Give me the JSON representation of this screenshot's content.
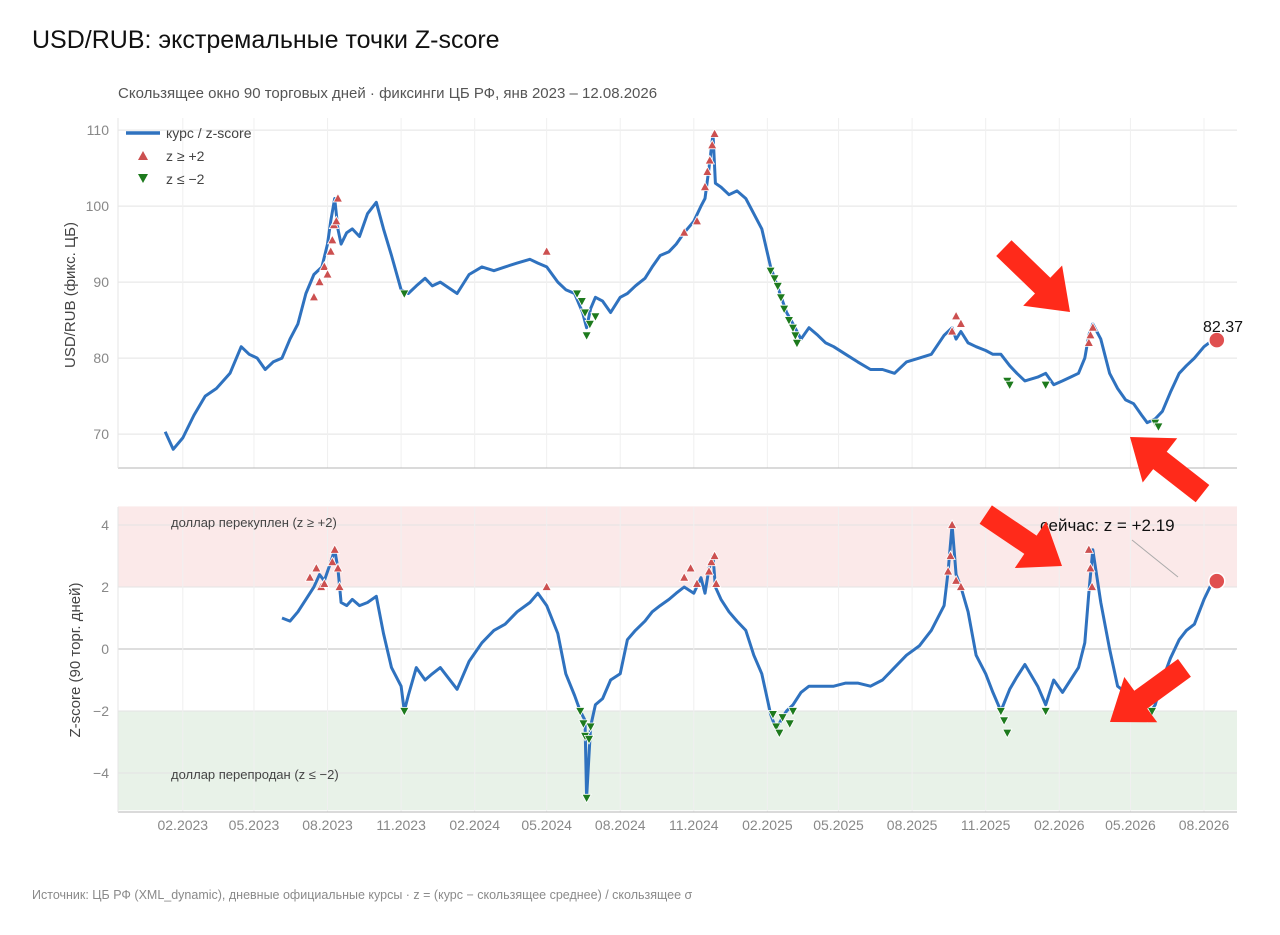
{
  "title": "USD/RUB: экстремальные точки Z-score",
  "subtitle": "Скользящее окно 90 торговых дней · фиксинги ЦБ РФ, янв 2023 – 12.08.2026",
  "source": "Источник: ЦБ РФ (XML_dynamic), дневные официальные курсы · z = (курс − скользящее среднее) / скользящее σ",
  "colors": {
    "line": "#2f72bf",
    "high": "#cc5050",
    "low": "#1d7a1d",
    "band_high": "#fbe9e9",
    "band_low": "#e8f2e8",
    "highlight": "#e05050",
    "arrow": "#ff2a1a"
  },
  "chart_data": [
    {
      "type": "line",
      "ylabel": "USD/RUB (фикс. ЦБ)",
      "ylim": [
        65.5,
        111
      ],
      "yticks": [
        70,
        80,
        90,
        100,
        110
      ],
      "grid": true,
      "legend": {
        "placement": "top-left",
        "entries": [
          "курс / z-score",
          "z ≥ +2",
          "z ≤ −2"
        ]
      },
      "x_ticks": [
        "02.2023",
        "05.2023",
        "08.2023",
        "11.2023",
        "02.2024",
        "05.2024",
        "08.2024",
        "11.2024",
        "02.2025",
        "05.2025",
        "08.2025",
        "11.2025",
        "02.2026",
        "05.2026",
        "08.2026"
      ],
      "series": [
        {
          "name": "курс / z-score",
          "x": [
            "2023-01-10",
            "2023-01-20",
            "2023-02-01",
            "2023-02-15",
            "2023-03-01",
            "2023-03-15",
            "2023-04-01",
            "2023-04-15",
            "2023-04-25",
            "2023-05-05",
            "2023-05-15",
            "2023-05-25",
            "2023-06-05",
            "2023-06-15",
            "2023-06-25",
            "2023-07-05",
            "2023-07-15",
            "2023-07-25",
            "2023-08-01",
            "2023-08-05",
            "2023-08-10",
            "2023-08-14",
            "2023-08-18",
            "2023-08-25",
            "2023-09-01",
            "2023-09-10",
            "2023-09-20",
            "2023-10-01",
            "2023-10-10",
            "2023-10-20",
            "2023-11-01",
            "2023-11-10",
            "2023-11-20",
            "2023-12-01",
            "2023-12-10",
            "2023-12-20",
            "2024-01-10",
            "2024-01-25",
            "2024-02-10",
            "2024-02-25",
            "2024-03-10",
            "2024-03-25",
            "2024-04-10",
            "2024-04-20",
            "2024-05-01",
            "2024-05-15",
            "2024-05-25",
            "2024-06-05",
            "2024-06-15",
            "2024-06-20",
            "2024-06-25",
            "2024-07-01",
            "2024-07-10",
            "2024-07-20",
            "2024-08-01",
            "2024-08-10",
            "2024-08-20",
            "2024-09-01",
            "2024-09-10",
            "2024-09-20",
            "2024-10-01",
            "2024-10-10",
            "2024-10-20",
            "2024-11-01",
            "2024-11-10",
            "2024-11-15",
            "2024-11-20",
            "2024-11-25",
            "2024-11-28",
            "2024-12-05",
            "2024-12-15",
            "2024-12-25",
            "2025-01-05",
            "2025-01-15",
            "2025-01-25",
            "2025-02-05",
            "2025-02-15",
            "2025-02-25",
            "2025-03-05",
            "2025-03-15",
            "2025-03-25",
            "2025-04-05",
            "2025-04-15",
            "2025-04-25",
            "2025-05-10",
            "2025-05-25",
            "2025-06-10",
            "2025-06-25",
            "2025-07-10",
            "2025-07-25",
            "2025-08-10",
            "2025-08-25",
            "2025-09-10",
            "2025-09-20",
            "2025-09-25",
            "2025-10-01",
            "2025-10-10",
            "2025-10-20",
            "2025-11-01",
            "2025-11-10",
            "2025-11-20",
            "2025-12-01",
            "2025-12-10",
            "2025-12-20",
            "2026-01-05",
            "2026-01-15",
            "2026-01-25",
            "2026-02-05",
            "2026-02-15",
            "2026-02-25",
            "2026-03-05",
            "2026-03-10",
            "2026-03-15",
            "2026-03-25",
            "2026-04-05",
            "2026-04-15",
            "2026-04-25",
            "2026-05-05",
            "2026-05-15",
            "2026-05-22",
            "2026-06-01",
            "2026-06-10",
            "2026-06-20",
            "2026-07-01",
            "2026-07-10",
            "2026-07-20",
            "2026-08-01",
            "2026-08-12"
          ],
          "values": [
            70.3,
            68.0,
            69.5,
            72.5,
            75.0,
            76.0,
            78.0,
            81.5,
            80.5,
            80.0,
            78.5,
            79.5,
            80.0,
            82.5,
            84.5,
            88.5,
            91.0,
            92.0,
            95.0,
            98.0,
            101.0,
            97.0,
            95.0,
            96.5,
            97.0,
            96.0,
            99.0,
            100.5,
            97.0,
            93.5,
            89.0,
            88.5,
            89.5,
            90.5,
            89.5,
            90.0,
            88.5,
            91.0,
            92.0,
            91.5,
            92.0,
            92.5,
            93.0,
            92.5,
            92.0,
            90.0,
            89.0,
            88.5,
            86.0,
            84.0,
            86.5,
            88.0,
            87.5,
            86.0,
            88.0,
            88.5,
            89.5,
            90.5,
            92.0,
            93.5,
            94.0,
            95.0,
            96.5,
            98.0,
            100.0,
            101.0,
            105.0,
            109.5,
            103.0,
            102.5,
            101.5,
            102.0,
            101.0,
            99.0,
            97.0,
            92.0,
            89.0,
            86.0,
            84.5,
            82.5,
            84.0,
            83.0,
            82.0,
            81.5,
            80.5,
            79.5,
            78.5,
            78.5,
            78.0,
            79.5,
            80.0,
            80.5,
            83.0,
            84.0,
            82.5,
            83.5,
            82.0,
            81.5,
            81.0,
            80.5,
            80.5,
            79.0,
            78.0,
            77.0,
            77.5,
            78.0,
            76.5,
            77.0,
            77.5,
            78.0,
            80.0,
            83.0,
            84.5,
            82.5,
            78.0,
            76.0,
            74.5,
            74.0,
            72.5,
            71.5,
            72.0,
            73.0,
            75.5,
            78.0,
            79.0,
            80.0,
            81.5,
            82.37
          ]
        }
      ],
      "markers_high": [
        {
          "x": "2023-07-15",
          "y": 88.0
        },
        {
          "x": "2023-07-22",
          "y": 90.0
        },
        {
          "x": "2023-07-28",
          "y": 92.0
        },
        {
          "x": "2023-08-01",
          "y": 91.0
        },
        {
          "x": "2023-08-05",
          "y": 94.0
        },
        {
          "x": "2023-08-07",
          "y": 95.5
        },
        {
          "x": "2023-08-09",
          "y": 97.5
        },
        {
          "x": "2023-08-12",
          "y": 98.0
        },
        {
          "x": "2023-08-14",
          "y": 101.0
        },
        {
          "x": "2024-05-01",
          "y": 94.0
        },
        {
          "x": "2024-10-20",
          "y": 96.5
        },
        {
          "x": "2024-11-05",
          "y": 98.0
        },
        {
          "x": "2024-11-15",
          "y": 102.5
        },
        {
          "x": "2024-11-18",
          "y": 104.5
        },
        {
          "x": "2024-11-21",
          "y": 106.0
        },
        {
          "x": "2024-11-24",
          "y": 108.0
        },
        {
          "x": "2024-11-27",
          "y": 109.5
        },
        {
          "x": "2025-09-20",
          "y": 83.5
        },
        {
          "x": "2025-09-25",
          "y": 85.5
        },
        {
          "x": "2025-10-01",
          "y": 84.5
        },
        {
          "x": "2026-03-10",
          "y": 82.0
        },
        {
          "x": "2026-03-12",
          "y": 83.0
        },
        {
          "x": "2026-03-15",
          "y": 84.0
        }
      ],
      "markers_low": [
        {
          "x": "2023-11-05",
          "y": 88.5
        },
        {
          "x": "2024-06-08",
          "y": 88.5
        },
        {
          "x": "2024-06-14",
          "y": 87.5
        },
        {
          "x": "2024-06-18",
          "y": 86.0
        },
        {
          "x": "2024-06-20",
          "y": 83.0
        },
        {
          "x": "2024-06-24",
          "y": 84.5
        },
        {
          "x": "2024-07-01",
          "y": 85.5
        },
        {
          "x": "2025-02-05",
          "y": 91.5
        },
        {
          "x": "2025-02-10",
          "y": 90.5
        },
        {
          "x": "2025-02-14",
          "y": 89.5
        },
        {
          "x": "2025-02-18",
          "y": 88.0
        },
        {
          "x": "2025-02-22",
          "y": 86.5
        },
        {
          "x": "2025-02-28",
          "y": 85.0
        },
        {
          "x": "2025-03-05",
          "y": 84.0
        },
        {
          "x": "2025-03-08",
          "y": 83.0
        },
        {
          "x": "2025-03-10",
          "y": 82.0
        },
        {
          "x": "2025-11-28",
          "y": 77.0
        },
        {
          "x": "2025-12-01",
          "y": 76.5
        },
        {
          "x": "2026-01-15",
          "y": 76.5
        },
        {
          "x": "2026-06-01",
          "y": 71.5
        },
        {
          "x": "2026-06-05",
          "y": 71.0
        }
      ],
      "last_value": {
        "x": "2026-08-12",
        "y": 82.37,
        "label": "82.37"
      }
    },
    {
      "type": "line",
      "ylabel": "Z-score (90 торг. дней)",
      "ylim": [
        -5.2,
        4.6
      ],
      "yticks": [
        4,
        2,
        0,
        -2,
        -4
      ],
      "ytick_labels": [
        "4",
        "2",
        "0",
        "−2",
        "−4"
      ],
      "grid": true,
      "bands": [
        {
          "from": 2,
          "to": 4.6,
          "label": "доллар перекуплен (z ≥ +2)"
        },
        {
          "from": -5.2,
          "to": -2,
          "label": "доллар перепродан (z ≤ −2)"
        }
      ],
      "series": [
        {
          "name": "курс / z-score",
          "x": [
            "2023-06-05",
            "2023-06-15",
            "2023-06-25",
            "2023-07-05",
            "2023-07-15",
            "2023-07-22",
            "2023-07-28",
            "2023-08-05",
            "2023-08-10",
            "2023-08-14",
            "2023-08-18",
            "2023-08-25",
            "2023-09-01",
            "2023-09-10",
            "2023-09-20",
            "2023-10-01",
            "2023-10-10",
            "2023-10-20",
            "2023-11-01",
            "2023-11-05",
            "2023-11-10",
            "2023-11-20",
            "2023-12-01",
            "2023-12-10",
            "2023-12-20",
            "2024-01-10",
            "2024-01-25",
            "2024-02-10",
            "2024-02-25",
            "2024-03-10",
            "2024-03-25",
            "2024-04-10",
            "2024-04-20",
            "2024-05-01",
            "2024-05-15",
            "2024-05-25",
            "2024-06-05",
            "2024-06-12",
            "2024-06-18",
            "2024-06-20",
            "2024-06-25",
            "2024-07-01",
            "2024-07-10",
            "2024-07-20",
            "2024-08-01",
            "2024-08-10",
            "2024-08-20",
            "2024-09-01",
            "2024-09-10",
            "2024-09-20",
            "2024-10-01",
            "2024-10-10",
            "2024-10-20",
            "2024-11-01",
            "2024-11-10",
            "2024-11-15",
            "2024-11-20",
            "2024-11-25",
            "2024-11-28",
            "2024-12-05",
            "2024-12-15",
            "2024-12-25",
            "2025-01-05",
            "2025-01-15",
            "2025-01-25",
            "2025-02-05",
            "2025-02-12",
            "2025-02-20",
            "2025-02-25",
            "2025-03-05",
            "2025-03-15",
            "2025-03-25",
            "2025-04-05",
            "2025-04-15",
            "2025-04-25",
            "2025-05-10",
            "2025-05-25",
            "2025-06-10",
            "2025-06-25",
            "2025-07-10",
            "2025-07-25",
            "2025-08-10",
            "2025-08-25",
            "2025-09-10",
            "2025-09-15",
            "2025-09-20",
            "2025-09-25",
            "2025-10-01",
            "2025-10-10",
            "2025-10-20",
            "2025-11-01",
            "2025-11-10",
            "2025-11-20",
            "2025-12-01",
            "2025-12-10",
            "2025-12-20",
            "2026-01-05",
            "2026-01-15",
            "2026-01-25",
            "2026-02-05",
            "2026-02-15",
            "2026-02-25",
            "2026-03-05",
            "2026-03-10",
            "2026-03-15",
            "2026-03-25",
            "2026-04-05",
            "2026-04-15",
            "2026-04-25",
            "2026-05-05",
            "2026-05-15",
            "2026-05-22",
            "2026-06-01",
            "2026-06-10",
            "2026-06-20",
            "2026-07-01",
            "2026-07-10",
            "2026-07-20",
            "2026-08-01",
            "2026-08-12"
          ],
          "values": [
            1.0,
            0.9,
            1.2,
            1.6,
            2.0,
            2.4,
            2.2,
            2.8,
            3.2,
            2.6,
            1.5,
            1.4,
            1.6,
            1.4,
            1.5,
            1.7,
            0.5,
            -0.6,
            -1.2,
            -2.0,
            -1.5,
            -0.6,
            -1.0,
            -0.8,
            -0.6,
            -1.3,
            -0.4,
            0.2,
            0.6,
            0.8,
            1.2,
            1.5,
            1.8,
            1.4,
            0.5,
            -0.8,
            -1.5,
            -2.0,
            -2.3,
            -4.8,
            -2.5,
            -1.8,
            -1.6,
            -1.0,
            -0.8,
            0.3,
            0.6,
            0.9,
            1.2,
            1.4,
            1.6,
            1.8,
            2.0,
            1.8,
            2.3,
            1.8,
            2.6,
            3.0,
            2.0,
            1.6,
            1.2,
            0.9,
            0.6,
            -0.2,
            -0.8,
            -2.1,
            -2.6,
            -2.2,
            -2.0,
            -1.8,
            -1.4,
            -1.2,
            -1.2,
            -1.2,
            -1.2,
            -1.1,
            -1.1,
            -1.2,
            -1.0,
            -0.6,
            -0.2,
            0.1,
            0.6,
            1.4,
            2.5,
            4.0,
            2.4,
            2.0,
            1.2,
            -0.2,
            -0.8,
            -1.4,
            -2.0,
            -1.3,
            -0.9,
            -0.5,
            -1.2,
            -1.8,
            -1.0,
            -1.4,
            -1.0,
            -0.6,
            0.2,
            1.8,
            3.2,
            1.5,
            0.0,
            -1.2,
            -1.4,
            -1.6,
            -1.8,
            -2.2,
            -1.8,
            -1.0,
            -0.3,
            0.3,
            0.6,
            0.8,
            1.6,
            2.19
          ]
        }
      ],
      "markers_high": [
        {
          "x": "2023-07-10",
          "y": 2.3
        },
        {
          "x": "2023-07-18",
          "y": 2.6
        },
        {
          "x": "2023-07-24",
          "y": 2.0
        },
        {
          "x": "2023-07-28",
          "y": 2.1
        },
        {
          "x": "2023-08-07",
          "y": 2.8
        },
        {
          "x": "2023-08-10",
          "y": 3.2
        },
        {
          "x": "2023-08-14",
          "y": 2.6
        },
        {
          "x": "2023-08-16",
          "y": 2.0
        },
        {
          "x": "2024-05-01",
          "y": 2.0
        },
        {
          "x": "2024-10-20",
          "y": 2.3
        },
        {
          "x": "2024-10-28",
          "y": 2.6
        },
        {
          "x": "2024-11-05",
          "y": 2.1
        },
        {
          "x": "2024-11-20",
          "y": 2.5
        },
        {
          "x": "2024-11-23",
          "y": 2.8
        },
        {
          "x": "2024-11-27",
          "y": 3.0
        },
        {
          "x": "2024-11-29",
          "y": 2.1
        },
        {
          "x": "2025-09-15",
          "y": 2.5
        },
        {
          "x": "2025-09-18",
          "y": 3.0
        },
        {
          "x": "2025-09-20",
          "y": 4.0
        },
        {
          "x": "2025-09-25",
          "y": 2.2
        },
        {
          "x": "2025-10-01",
          "y": 2.0
        },
        {
          "x": "2026-03-10",
          "y": 3.2
        },
        {
          "x": "2026-03-12",
          "y": 2.6
        },
        {
          "x": "2026-03-14",
          "y": 2.0
        }
      ],
      "markers_low": [
        {
          "x": "2023-11-05",
          "y": -2.0
        },
        {
          "x": "2024-06-12",
          "y": -2.0
        },
        {
          "x": "2024-06-16",
          "y": -2.4
        },
        {
          "x": "2024-06-18",
          "y": -2.8
        },
        {
          "x": "2024-06-20",
          "y": -4.8
        },
        {
          "x": "2024-06-23",
          "y": -2.9
        },
        {
          "x": "2024-06-25",
          "y": -2.5
        },
        {
          "x": "2025-02-08",
          "y": -2.1
        },
        {
          "x": "2025-02-12",
          "y": -2.5
        },
        {
          "x": "2025-02-16",
          "y": -2.7
        },
        {
          "x": "2025-02-20",
          "y": -2.2
        },
        {
          "x": "2025-03-01",
          "y": -2.4
        },
        {
          "x": "2025-03-05",
          "y": -2.0
        },
        {
          "x": "2025-11-20",
          "y": -2.0
        },
        {
          "x": "2025-11-24",
          "y": -2.3
        },
        {
          "x": "2025-11-28",
          "y": -2.7
        },
        {
          "x": "2026-01-15",
          "y": -2.0
        },
        {
          "x": "2026-05-22",
          "y": -2.2
        },
        {
          "x": "2026-05-28",
          "y": -2.0
        }
      ],
      "last_value": {
        "x": "2026-08-12",
        "y": 2.19,
        "label": "сейчас: z = +2.19"
      }
    }
  ]
}
